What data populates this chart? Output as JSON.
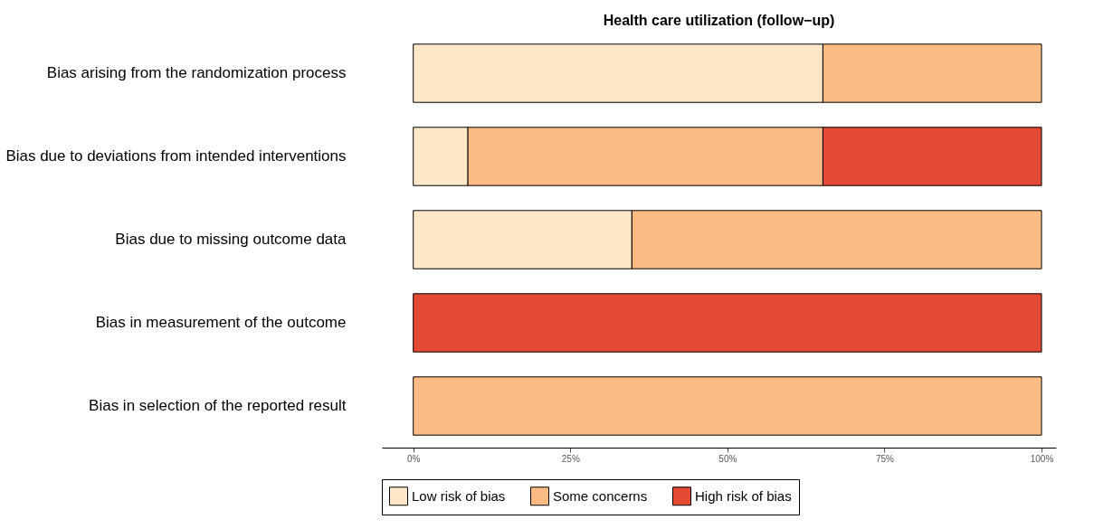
{
  "chart_data": {
    "type": "bar",
    "orientation": "horizontal",
    "stacked": true,
    "title": "Health care utilization (follow−up)",
    "categories": [
      "Bias arising from the randomization process",
      "Bias due to deviations from intended interventions",
      "Bias due to missing outcome data",
      "Bias in measurement of the outcome",
      "Bias in selection of the reported result"
    ],
    "series": [
      {
        "name": "Low risk of bias",
        "color": "#fee8c8",
        "values": [
          65.2,
          8.7,
          34.8,
          null,
          null
        ]
      },
      {
        "name": "Some concerns",
        "color": "#fdbb84",
        "values": [
          34.8,
          56.5,
          65.2,
          null,
          100
        ]
      },
      {
        "name": "High risk of bias",
        "color": "#e34a33",
        "values": [
          null,
          34.8,
          null,
          100,
          null
        ]
      }
    ],
    "xlim": [
      -5,
      102.3
    ],
    "xticks": [
      {
        "value": 0,
        "label": "0%"
      },
      {
        "value": 25,
        "label": "25%"
      },
      {
        "value": 50,
        "label": "50%"
      },
      {
        "value": 75,
        "label": "75%"
      },
      {
        "value": 100,
        "label": "100%"
      }
    ],
    "grid": false,
    "legend": "bottom"
  }
}
